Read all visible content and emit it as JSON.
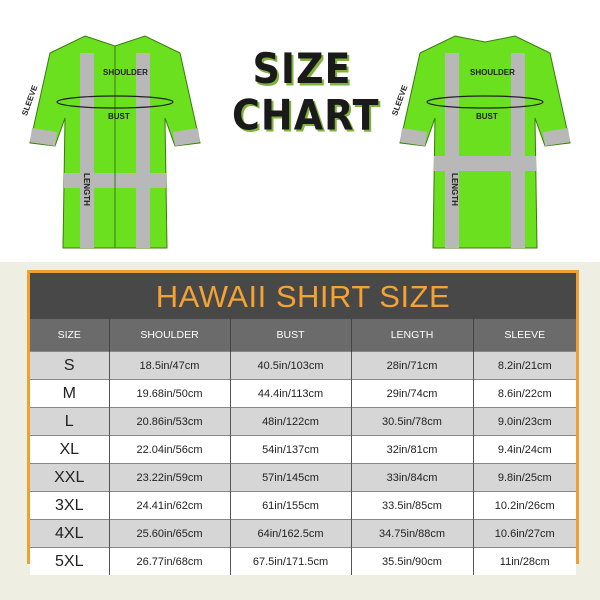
{
  "heading": {
    "line1": "SIZE",
    "line2": "CHART"
  },
  "front_labels": {
    "shoulder": "SHOULDER",
    "bust": "BUST",
    "sleeve": "SLEEVE",
    "length": "LENGTH"
  },
  "back_labels": {
    "shoulder": "SHOULDER",
    "bust": "BUST",
    "sleeve": "SLEEVE",
    "length": "LENGTH"
  },
  "colors": {
    "shirt": "#6be01e",
    "stripe": "#b8b8b8",
    "accent": "#f0a030",
    "title_bar": "#484848"
  },
  "table": {
    "title": "HAWAII SHIRT SIZE",
    "headers": [
      "SIZE",
      "SHOULDER",
      "BUST",
      "LENGTH",
      "SLEEVE"
    ],
    "rows": [
      [
        "S",
        "18.5in/47cm",
        "40.5in/103cm",
        "28in/71cm",
        "8.2in/21cm"
      ],
      [
        "M",
        "19.68in/50cm",
        "44.4in/113cm",
        "29in/74cm",
        "8.6in/22cm"
      ],
      [
        "L",
        "20.86in/53cm",
        "48in/122cm",
        "30.5in/78cm",
        "9.0in/23cm"
      ],
      [
        "XL",
        "22.04in/56cm",
        "54in/137cm",
        "32in/81cm",
        "9.4in/24cm"
      ],
      [
        "XXL",
        "23.22in/59cm",
        "57in/145cm",
        "33in/84cm",
        "9.8in/25cm"
      ],
      [
        "3XL",
        "24.41in/62cm",
        "61in/155cm",
        "33.5in/85cm",
        "10.2in/26cm"
      ],
      [
        "4XL",
        "25.60in/65cm",
        "64in/162.5cm",
        "34.75in/88cm",
        "10.6in/27cm"
      ],
      [
        "5XL",
        "26.77in/68cm",
        "67.5in/171.5cm",
        "35.5in/90cm",
        "11in/28cm"
      ]
    ]
  }
}
